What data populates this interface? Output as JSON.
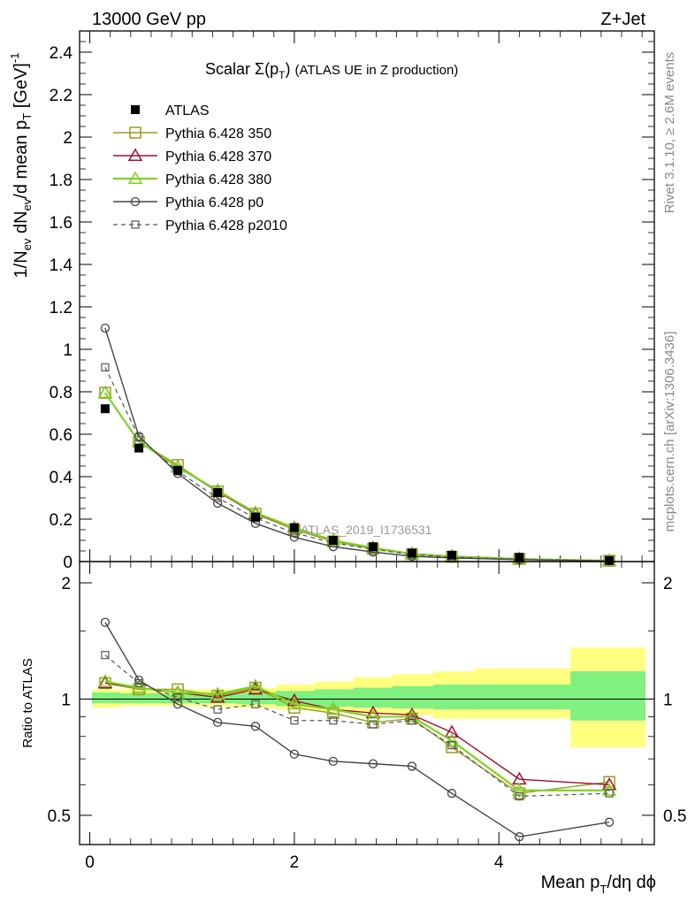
{
  "header": {
    "left": "13000 GeV pp",
    "right": "Z+Jet"
  },
  "side_text": {
    "rivet": "Rivet 3.1.10, ≥ 2.6M events",
    "mcplots": "mcplots.cern.ch [arXiv:1306.3436]"
  },
  "watermark": "ATLAS_2019_I1736531",
  "chart_data": [
    {
      "type": "line",
      "panel": "main",
      "title": "Scalar Σ(pT) (ATLAS UE in Z production)",
      "ylabel": "1/Nev dNev/d mean pT [GeV]^-1",
      "xlim": [
        -0.1,
        5.52
      ],
      "ylim": [
        0,
        2.5
      ],
      "yticks": [
        0,
        0.2,
        0.4,
        0.6,
        0.8,
        1,
        1.2,
        1.4,
        1.6,
        1.8,
        2,
        2.2,
        2.4
      ],
      "ytick_labels": [
        "0",
        "0.2",
        "0.4",
        "0.6",
        "0.8",
        "1",
        "1.2",
        "1.4",
        "1.6",
        "1.8",
        "2",
        "2.2",
        "2.4"
      ],
      "legend_position": "top-left",
      "x": [
        0.15,
        0.48,
        0.86,
        1.25,
        1.62,
        2.0,
        2.38,
        2.77,
        3.15,
        3.54,
        4.2,
        5.08
      ],
      "series": [
        {
          "name": "ATLAS",
          "color": "#000000",
          "marker": "filled-square",
          "style": "points",
          "values": [
            0.72,
            0.535,
            0.43,
            0.325,
            0.21,
            0.16,
            0.1,
            0.07,
            0.04,
            0.03,
            0.02,
            0.005
          ]
        },
        {
          "name": "Pythia 6.428 350",
          "color": "#9b9b1f",
          "marker": "open-square",
          "style": "solid",
          "values": [
            0.795,
            0.565,
            0.455,
            0.33,
            0.225,
            0.15,
            0.095,
            0.06,
            0.035,
            0.022,
            0.012,
            0.004
          ]
        },
        {
          "name": "Pythia 6.428 370",
          "color": "#a0102e",
          "marker": "open-triangle",
          "style": "solid",
          "values": [
            0.795,
            0.565,
            0.445,
            0.33,
            0.225,
            0.16,
            0.1,
            0.065,
            0.037,
            0.025,
            0.013,
            0.004
          ]
        },
        {
          "name": "Pythia 6.428 380",
          "color": "#7ed321",
          "marker": "open-triangle",
          "style": "solid-thick",
          "values": [
            0.795,
            0.565,
            0.445,
            0.335,
            0.23,
            0.16,
            0.1,
            0.065,
            0.036,
            0.024,
            0.012,
            0.004
          ]
        },
        {
          "name": "Pythia 6.428 p0",
          "color": "#444444",
          "marker": "open-circle",
          "style": "solid",
          "values": [
            1.1,
            0.59,
            0.415,
            0.275,
            0.18,
            0.115,
            0.07,
            0.045,
            0.025,
            0.017,
            0.009,
            0.003
          ]
        },
        {
          "name": "Pythia 6.428 p2010",
          "color": "#555555",
          "marker": "open-square-small",
          "style": "dashed",
          "values": [
            0.915,
            0.585,
            0.425,
            0.3,
            0.205,
            0.135,
            0.088,
            0.058,
            0.033,
            0.021,
            0.011,
            0.004
          ]
        }
      ]
    },
    {
      "type": "line",
      "panel": "ratio",
      "ylabel": "Ratio to ATLAS",
      "xlabel": "Mean pT/dη dϕ",
      "xlim": [
        -0.1,
        5.52
      ],
      "ylim": [
        0.42,
        2.27
      ],
      "ylog": true,
      "yticks": [
        0.5,
        1,
        2
      ],
      "ytick_labels": [
        "0.5",
        "1",
        "2"
      ],
      "xticks": [
        0,
        2,
        4
      ],
      "xtick_labels": [
        "0",
        "2",
        "4"
      ],
      "band_bins": [
        -0.1,
        0.3,
        0.68,
        1.05,
        1.44,
        1.82,
        2.2,
        2.58,
        2.96,
        3.36,
        3.76,
        4.7,
        5.52
      ],
      "band_stat_systematic_yellow": [
        [
          0.95,
          1.06
        ],
        [
          0.96,
          1.06
        ],
        [
          0.96,
          1.06
        ],
        [
          0.955,
          1.06
        ],
        [
          0.95,
          1.07
        ],
        [
          0.94,
          1.09
        ],
        [
          0.93,
          1.11
        ],
        [
          0.92,
          1.14
        ],
        [
          0.91,
          1.16
        ],
        [
          0.89,
          1.18
        ],
        [
          0.89,
          1.2
        ],
        [
          0.75,
          1.36
        ]
      ],
      "band_stat_green": [
        [
          0.975,
          1.04
        ],
        [
          0.975,
          1.035
        ],
        [
          0.975,
          1.03
        ],
        [
          0.975,
          1.035
        ],
        [
          0.97,
          1.04
        ],
        [
          0.96,
          1.05
        ],
        [
          0.955,
          1.06
        ],
        [
          0.95,
          1.07
        ],
        [
          0.945,
          1.08
        ],
        [
          0.94,
          1.09
        ],
        [
          0.94,
          1.09
        ],
        [
          0.88,
          1.18
        ]
      ],
      "x": [
        0.15,
        0.48,
        0.86,
        1.25,
        1.62,
        2.0,
        2.38,
        2.77,
        3.15,
        3.54,
        4.2,
        5.08
      ],
      "series": [
        {
          "name": "Pythia 6.428 350",
          "color": "#9b9b1f",
          "marker": "open-square",
          "style": "solid",
          "values": [
            1.1,
            1.06,
            1.06,
            1.02,
            1.07,
            0.95,
            0.92,
            0.87,
            0.89,
            0.75,
            0.57,
            0.61
          ]
        },
        {
          "name": "Pythia 6.428 370",
          "color": "#a0102e",
          "marker": "open-triangle",
          "style": "solid",
          "values": [
            1.1,
            1.07,
            1.04,
            1.01,
            1.06,
            0.99,
            0.94,
            0.92,
            0.91,
            0.82,
            0.62,
            0.6
          ]
        },
        {
          "name": "Pythia 6.428 380",
          "color": "#7ed321",
          "marker": "open-triangle",
          "style": "solid-thick",
          "values": [
            1.11,
            1.07,
            1.04,
            1.03,
            1.08,
            0.97,
            0.94,
            0.9,
            0.9,
            0.78,
            0.58,
            0.58
          ]
        },
        {
          "name": "Pythia 6.428 p0",
          "color": "#444444",
          "marker": "open-circle",
          "style": "solid",
          "values": [
            1.58,
            1.12,
            0.97,
            0.87,
            0.85,
            0.72,
            0.69,
            0.68,
            0.67,
            0.57,
            0.44,
            0.48
          ]
        },
        {
          "name": "Pythia 6.428 p2010",
          "color": "#555555",
          "marker": "open-square-small",
          "style": "dashed",
          "values": [
            1.3,
            1.1,
            1.01,
            0.94,
            0.97,
            0.88,
            0.88,
            0.86,
            0.88,
            0.76,
            0.56,
            0.57
          ]
        }
      ]
    }
  ]
}
